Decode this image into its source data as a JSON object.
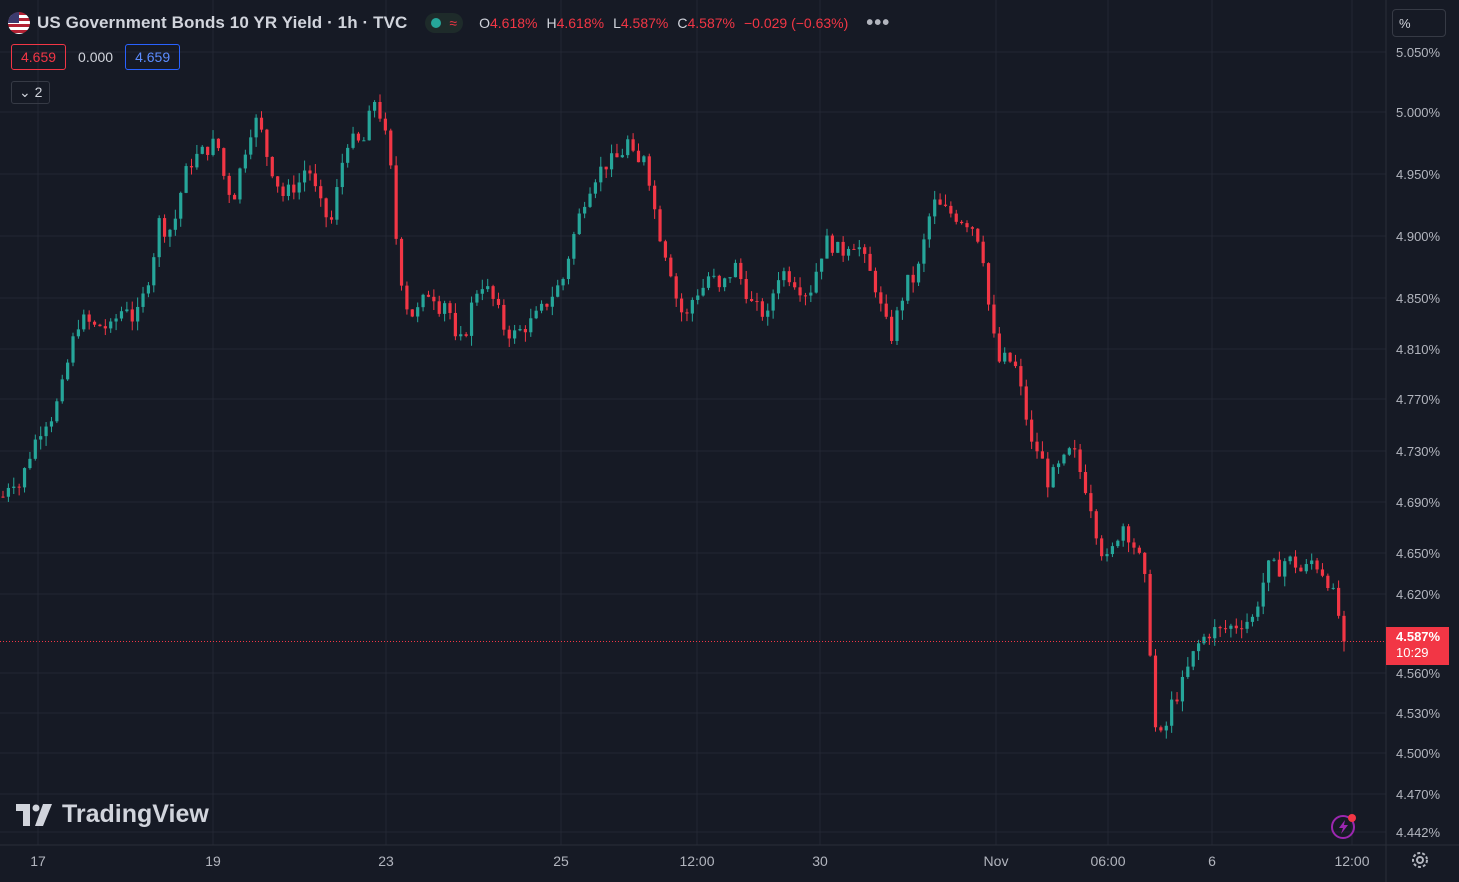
{
  "legend": {
    "title": "US Government Bonds 10 YR Yield · 1h · TVC",
    "ohlc": [
      {
        "k": "O",
        "v": "4.618%"
      },
      {
        "k": "H",
        "v": "4.618%"
      },
      {
        "k": "L",
        "v": "4.587%"
      },
      {
        "k": "C",
        "v": "4.587%"
      },
      {
        "k": "",
        "v": "−0.029 (−0.63%)"
      }
    ],
    "bid": "4.659",
    "spread": "0.000",
    "ask": "4.659",
    "collapse_label": "2"
  },
  "scale_mode_label": "%",
  "logo_text": "TradingView",
  "last_price": {
    "value": "4.587%",
    "countdown": "10:29"
  },
  "colors": {
    "up": "#26a69a",
    "down": "#f23645",
    "background": "#161a25",
    "grid": "#232733"
  },
  "chart_data": {
    "type": "candlestick",
    "title": "US Government Bonds 10 YR Yield · 1h · TVC",
    "y_ticks": [
      "5.050%",
      "5.000%",
      "4.950%",
      "4.900%",
      "4.850%",
      "4.810%",
      "4.770%",
      "4.730%",
      "4.690%",
      "4.650%",
      "4.620%",
      "4.560%",
      "4.530%",
      "4.500%",
      "4.470%",
      "4.442%"
    ],
    "x_ticks": [
      "17",
      "19",
      "23",
      "25",
      "12:00",
      "30",
      "Nov",
      "06:00",
      "6",
      "12:00"
    ],
    "last_value": 4.587,
    "close_path": [
      [
        0,
        4.7
      ],
      [
        1,
        4.715
      ],
      [
        2,
        4.708
      ],
      [
        3,
        4.728
      ],
      [
        4,
        4.745
      ],
      [
        5,
        4.758
      ],
      [
        6,
        4.763
      ],
      [
        7,
        4.78
      ],
      [
        8,
        4.808
      ],
      [
        9,
        4.835
      ],
      [
        10,
        4.838
      ],
      [
        11,
        4.832
      ],
      [
        12,
        4.834
      ],
      [
        13,
        4.83
      ],
      [
        14,
        4.842
      ],
      [
        15,
        4.85
      ],
      [
        16,
        4.835
      ],
      [
        17,
        4.855
      ],
      [
        18,
        4.878
      ],
      [
        19,
        4.915
      ],
      [
        20,
        4.905
      ],
      [
        21,
        4.918
      ],
      [
        22,
        4.95
      ],
      [
        23,
        4.962
      ],
      [
        24,
        4.968
      ],
      [
        25,
        4.972
      ],
      [
        26,
        4.978
      ],
      [
        27,
        4.945
      ],
      [
        28,
        4.932
      ],
      [
        29,
        4.96
      ],
      [
        30,
        4.985
      ],
      [
        31,
        4.995
      ],
      [
        32,
        4.968
      ],
      [
        33,
        4.95
      ],
      [
        34,
        4.935
      ],
      [
        35,
        4.94
      ],
      [
        36,
        4.945
      ],
      [
        37,
        4.96
      ],
      [
        38,
        4.938
      ],
      [
        39,
        4.92
      ],
      [
        40,
        4.915
      ],
      [
        41,
        4.955
      ],
      [
        42,
        4.98
      ],
      [
        43,
        4.975
      ],
      [
        44,
        4.978
      ],
      [
        45,
        5.012
      ],
      [
        46,
        4.995
      ],
      [
        47,
        4.965
      ],
      [
        48,
        4.885
      ],
      [
        49,
        4.85
      ],
      [
        50,
        4.84
      ],
      [
        51,
        4.852
      ],
      [
        52,
        4.862
      ],
      [
        53,
        4.848
      ],
      [
        54,
        4.855
      ],
      [
        55,
        4.82
      ],
      [
        56,
        4.822
      ],
      [
        57,
        4.85
      ],
      [
        58,
        4.868
      ],
      [
        59,
        4.86
      ],
      [
        60,
        4.848
      ],
      [
        61,
        4.83
      ],
      [
        62,
        4.826
      ],
      [
        63,
        4.83
      ],
      [
        64,
        4.835
      ],
      [
        65,
        4.842
      ],
      [
        66,
        4.85
      ],
      [
        67,
        4.86
      ],
      [
        68,
        4.868
      ],
      [
        69,
        4.895
      ],
      [
        70,
        4.918
      ],
      [
        71,
        4.938
      ],
      [
        72,
        4.95
      ],
      [
        73,
        4.958
      ],
      [
        74,
        4.962
      ],
      [
        75,
        4.965
      ],
      [
        76,
        4.978
      ],
      [
        77,
        4.955
      ],
      [
        78,
        4.97
      ],
      [
        79,
        4.93
      ],
      [
        80,
        4.9
      ],
      [
        81,
        4.882
      ],
      [
        82,
        4.85
      ],
      [
        83,
        4.838
      ],
      [
        84,
        4.858
      ],
      [
        85,
        4.862
      ],
      [
        86,
        4.875
      ],
      [
        87,
        4.86
      ],
      [
        88,
        4.87
      ],
      [
        89,
        4.88
      ],
      [
        90,
        4.865
      ],
      [
        91,
        4.85
      ],
      [
        92,
        4.845
      ],
      [
        93,
        4.84
      ],
      [
        94,
        4.872
      ],
      [
        95,
        4.875
      ],
      [
        96,
        4.87
      ],
      [
        97,
        4.862
      ],
      [
        98,
        4.858
      ],
      [
        99,
        4.88
      ],
      [
        100,
        4.9
      ],
      [
        101,
        4.895
      ],
      [
        102,
        4.89
      ],
      [
        103,
        4.9
      ],
      [
        104,
        4.895
      ],
      [
        105,
        4.88
      ],
      [
        106,
        4.865
      ],
      [
        107,
        4.84
      ],
      [
        108,
        4.825
      ],
      [
        109,
        4.85
      ],
      [
        110,
        4.868
      ],
      [
        111,
        4.87
      ],
      [
        112,
        4.9
      ],
      [
        113,
        4.93
      ],
      [
        114,
        4.925
      ],
      [
        115,
        4.922
      ],
      [
        116,
        4.918
      ],
      [
        117,
        4.915
      ],
      [
        118,
        4.91
      ],
      [
        119,
        4.895
      ],
      [
        120,
        4.838
      ],
      [
        121,
        4.805
      ],
      [
        122,
        4.808
      ],
      [
        123,
        4.802
      ],
      [
        124,
        4.775
      ],
      [
        125,
        4.74
      ],
      [
        126,
        4.735
      ],
      [
        127,
        4.712
      ],
      [
        128,
        4.72
      ],
      [
        129,
        4.728
      ],
      [
        130,
        4.738
      ],
      [
        131,
        4.718
      ],
      [
        132,
        4.7
      ],
      [
        133,
        4.67
      ],
      [
        134,
        4.648
      ],
      [
        135,
        4.66
      ],
      [
        136,
        4.68
      ],
      [
        137,
        4.668
      ],
      [
        138,
        4.655
      ],
      [
        139,
        4.628
      ],
      [
        140,
        4.52
      ],
      [
        141,
        4.51
      ],
      [
        142,
        4.538
      ],
      [
        143,
        4.548
      ],
      [
        144,
        4.565
      ],
      [
        145,
        4.582
      ],
      [
        146,
        4.59
      ],
      [
        147,
        4.596
      ],
      [
        148,
        4.595
      ],
      [
        149,
        4.598
      ],
      [
        150,
        4.6
      ],
      [
        151,
        4.603
      ],
      [
        152,
        4.605
      ],
      [
        153,
        4.63
      ],
      [
        154,
        4.648
      ],
      [
        155,
        4.642
      ],
      [
        156,
        4.652
      ],
      [
        157,
        4.648
      ],
      [
        158,
        4.64
      ],
      [
        159,
        4.65
      ],
      [
        160,
        4.645
      ],
      [
        161,
        4.635
      ],
      [
        162,
        4.618
      ],
      [
        163,
        4.587
      ]
    ]
  }
}
